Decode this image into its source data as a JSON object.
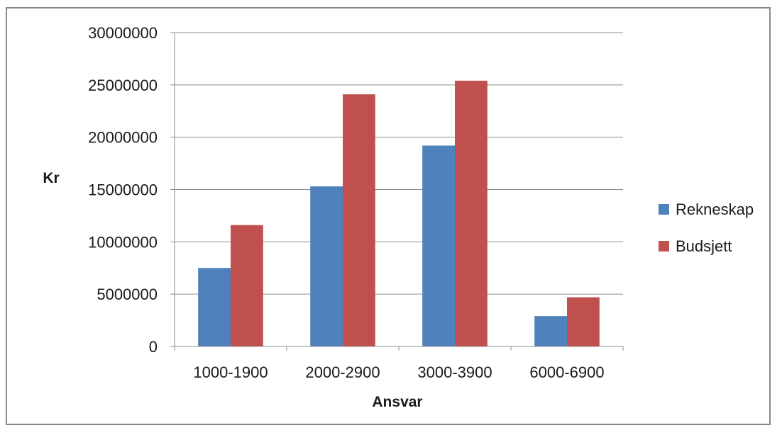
{
  "chart_data": {
    "type": "bar",
    "title": "",
    "xlabel": "Ansvar",
    "ylabel": "Kr",
    "ylim": [
      0,
      30000000
    ],
    "yticks": [
      0,
      5000000,
      10000000,
      15000000,
      20000000,
      25000000,
      30000000
    ],
    "ytick_labels": [
      "0",
      "5000000",
      "10000000",
      "15000000",
      "20000000",
      "25000000",
      "30000000"
    ],
    "categories": [
      "1000-1900",
      "2000-2900",
      "3000-3900",
      "6000-6900"
    ],
    "series": [
      {
        "name": "Rekneskap",
        "color": "#4f81bd",
        "values": [
          7500000,
          15300000,
          19200000,
          2900000
        ]
      },
      {
        "name": "Budsjett",
        "color": "#c0504d",
        "values": [
          11600000,
          24100000,
          25400000,
          4700000
        ]
      }
    ],
    "grid": true,
    "legend_position": "right"
  }
}
